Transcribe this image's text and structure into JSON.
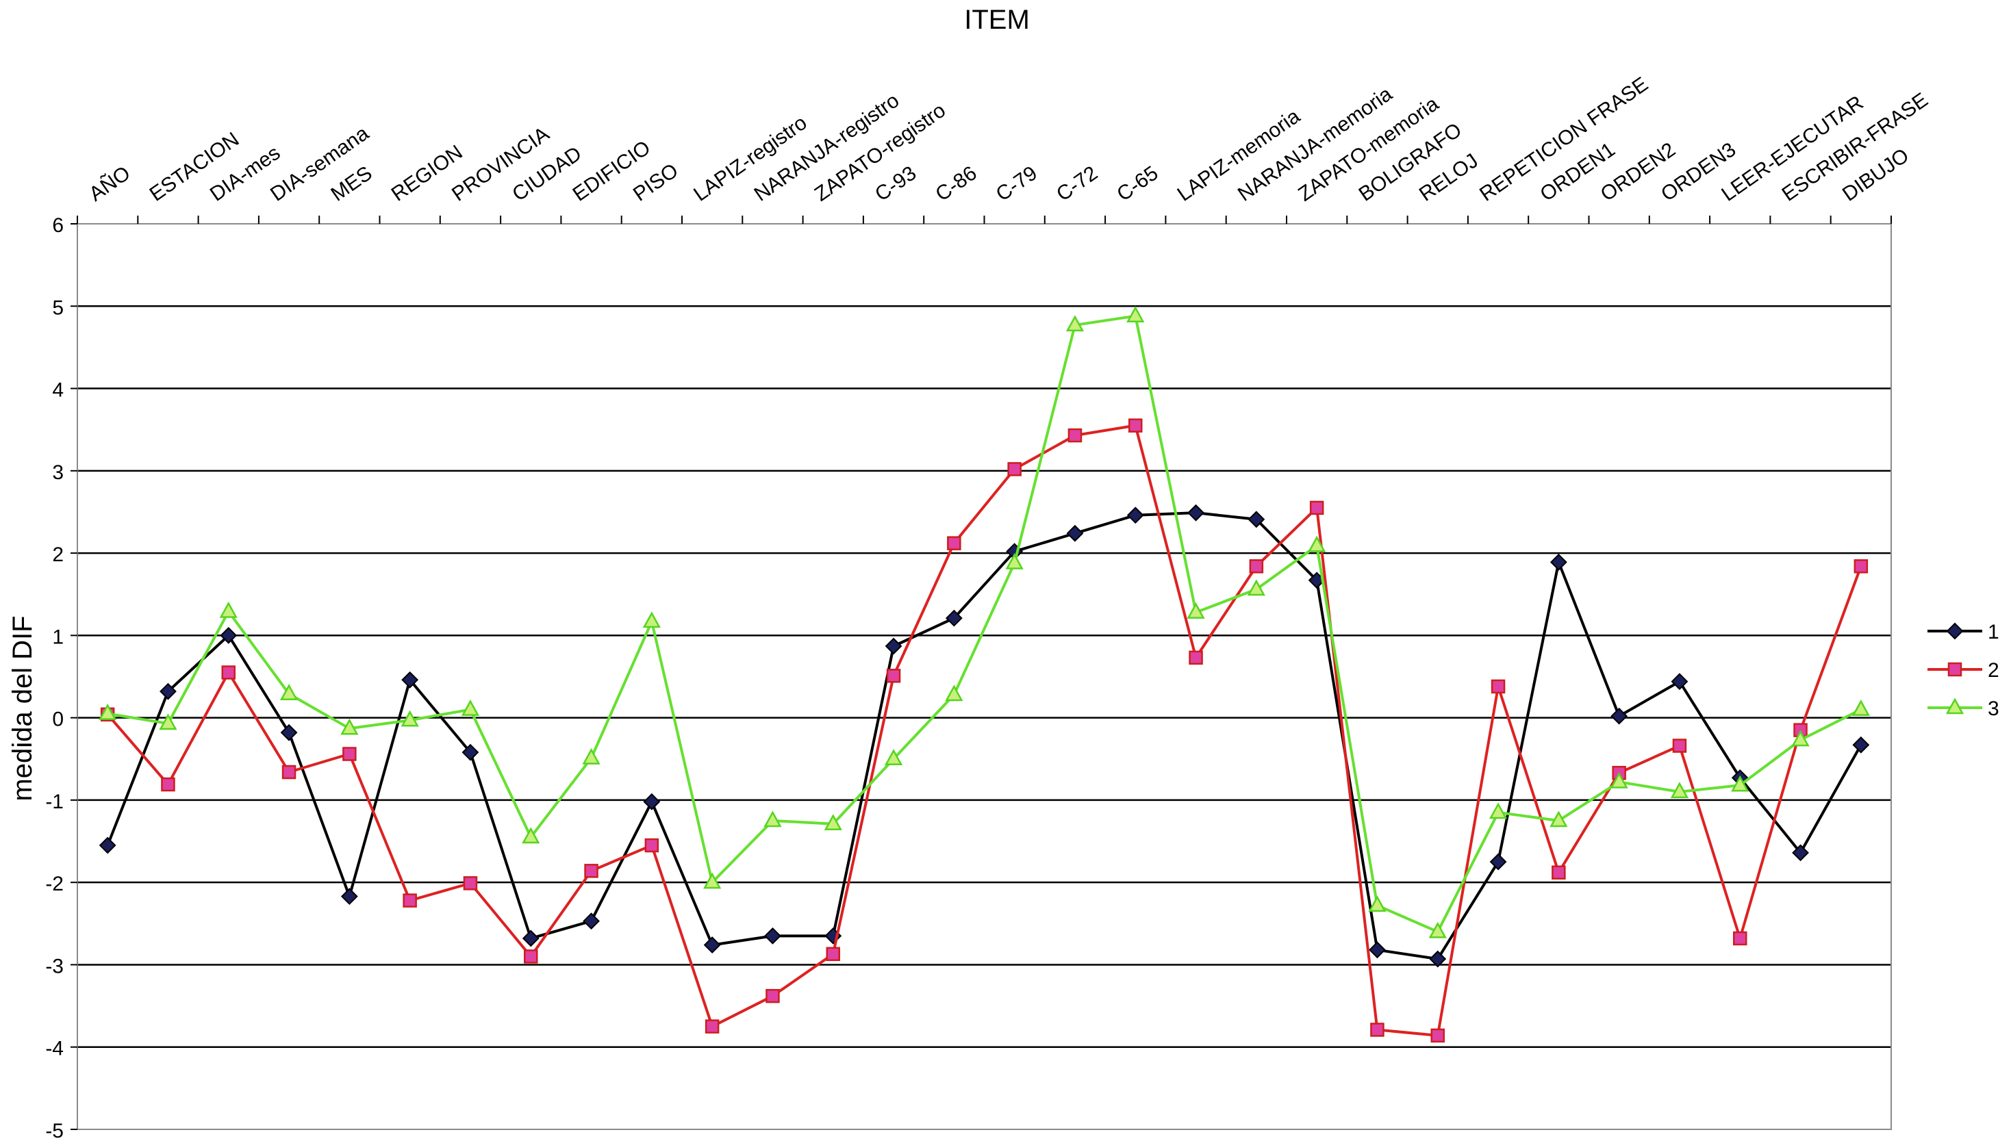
{
  "chart_data": {
    "type": "line",
    "title": "ITEM",
    "xlabel": "",
    "ylabel": "medida del DIF",
    "ylim": [
      -5,
      6
    ],
    "yticks": [
      -5,
      -4,
      -3,
      -2,
      -1,
      0,
      1,
      2,
      3,
      4,
      5,
      6
    ],
    "grid": "horizontal",
    "legend_position": "right",
    "categories": [
      "AÑO",
      "ESTACION",
      "DIA-mes",
      "DIA-semana",
      "MES",
      "REGION",
      "PROVINCIA",
      "CIUDAD",
      "EDIFICIO",
      "PISO",
      "LAPIZ-registro",
      "NARANJA-registro",
      "ZAPATO-registro",
      "C-93",
      "C-86",
      "C-79",
      "C-72",
      "C-65",
      "LAPIZ-memoria",
      "NARANJA-memoria",
      "ZAPATO-memoria",
      "BOLIGRAFO",
      "RELOJ",
      "REPETICION FRASE",
      "ORDEN1",
      "ORDEN2",
      "ORDEN3",
      "LEER-EJECUTAR",
      "ESCRIBIR-FRASE",
      "DIBUJO"
    ],
    "series": [
      {
        "name": "1",
        "color": "#000000",
        "marker": "diamond",
        "marker_color": "#1a1f5a",
        "values": [
          -1.55,
          0.32,
          1.0,
          -0.18,
          -2.17,
          0.46,
          -0.42,
          -2.68,
          -2.47,
          -1.02,
          -2.76,
          -2.65,
          -2.65,
          0.87,
          1.21,
          2.02,
          2.24,
          2.46,
          2.49,
          2.41,
          1.67,
          -2.82,
          -2.93,
          -1.75,
          1.89,
          0.02,
          0.44,
          -0.73,
          -1.64,
          -0.33
        ]
      },
      {
        "name": "2",
        "color": "#dd2222",
        "marker": "square",
        "marker_color": "#e040a0",
        "values": [
          0.04,
          -0.81,
          0.55,
          -0.66,
          -0.44,
          -2.22,
          -2.01,
          -2.9,
          -1.86,
          -1.55,
          -3.75,
          -3.38,
          -2.87,
          0.51,
          2.12,
          3.02,
          3.43,
          3.55,
          0.73,
          1.84,
          2.55,
          -3.79,
          -3.86,
          0.38,
          -1.88,
          -0.67,
          -0.34,
          -2.68,
          -0.15,
          1.84
        ]
      },
      {
        "name": "3",
        "color": "#66e030",
        "marker": "triangle",
        "marker_color": "#c8f07a",
        "values": [
          0.05,
          -0.07,
          1.29,
          0.29,
          -0.13,
          -0.03,
          0.1,
          -1.45,
          -0.49,
          1.17,
          -2.0,
          -1.25,
          -1.29,
          -0.5,
          0.28,
          1.88,
          4.77,
          4.88,
          1.28,
          1.56,
          2.09,
          -2.28,
          -2.6,
          -1.15,
          -1.25,
          -0.78,
          -0.9,
          -0.82,
          -0.27,
          0.1
        ]
      }
    ]
  }
}
